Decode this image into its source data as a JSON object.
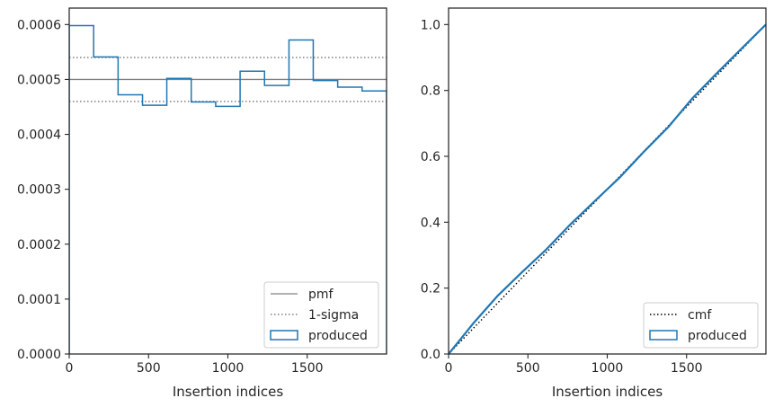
{
  "chart_data": [
    {
      "type": "step-histogram",
      "xlabel": "Insertion indices",
      "ylabel": "",
      "xlim": [
        0,
        2000
      ],
      "ylim": [
        0,
        0.00063
      ],
      "xticks": [
        0,
        500,
        1000,
        1500
      ],
      "xtick_labels": [
        "0",
        "500",
        "1000",
        "1500"
      ],
      "yticks": [
        0,
        0.0001,
        0.0002,
        0.0003,
        0.0004,
        0.0005,
        0.0006
      ],
      "ytick_labels": [
        "0.0000",
        "0.0001",
        "0.0002",
        "0.0003",
        "0.0004",
        "0.0005",
        "0.0006"
      ],
      "legend_position": "lower right",
      "legend": [
        "pmf",
        "1-sigma",
        "produced"
      ],
      "bin_edges": [
        0,
        154,
        308,
        462,
        615,
        769,
        923,
        1077,
        1231,
        1385,
        1538,
        1692,
        1846,
        2000
      ],
      "series": [
        {
          "name": "produced",
          "style": "step",
          "color": "#1f77b4",
          "values": [
            0.000598,
            0.000541,
            0.000472,
            0.000453,
            0.000502,
            0.000459,
            0.000451,
            0.000515,
            0.000489,
            0.000572,
            0.000498,
            0.000486,
            0.000479
          ]
        },
        {
          "name": "pmf",
          "style": "solid",
          "color": "#808080",
          "y": 0.0005
        },
        {
          "name": "1-sigma",
          "style": "dotted",
          "color": "#808080",
          "y": [
            0.00046,
            0.00054
          ]
        }
      ]
    },
    {
      "type": "line",
      "xlabel": "Insertion indices",
      "ylabel": "",
      "xlim": [
        0,
        2000
      ],
      "ylim": [
        0,
        1.05
      ],
      "xticks": [
        0,
        500,
        1000,
        1500
      ],
      "xtick_labels": [
        "0",
        "500",
        "1000",
        "1500"
      ],
      "yticks": [
        0,
        0.2,
        0.4,
        0.6,
        0.8,
        1.0
      ],
      "ytick_labels": [
        "0.0",
        "0.2",
        "0.4",
        "0.6",
        "0.8",
        "1.0"
      ],
      "legend_position": "lower right",
      "legend": [
        "cmf",
        "produced"
      ],
      "series": [
        {
          "name": "cmf",
          "style": "dotted",
          "color": "#000000",
          "x": [
            0,
            2000
          ],
          "y": [
            0,
            1.0
          ]
        },
        {
          "name": "produced",
          "style": "solid",
          "color": "#1f77b4",
          "x": [
            0,
            154,
            308,
            462,
            615,
            769,
            923,
            1077,
            1231,
            1385,
            1538,
            1692,
            1846,
            2000
          ],
          "y": [
            0,
            0.092,
            0.176,
            0.248,
            0.317,
            0.394,
            0.465,
            0.535,
            0.614,
            0.689,
            0.777,
            0.853,
            0.927,
            1.0
          ]
        }
      ]
    }
  ]
}
